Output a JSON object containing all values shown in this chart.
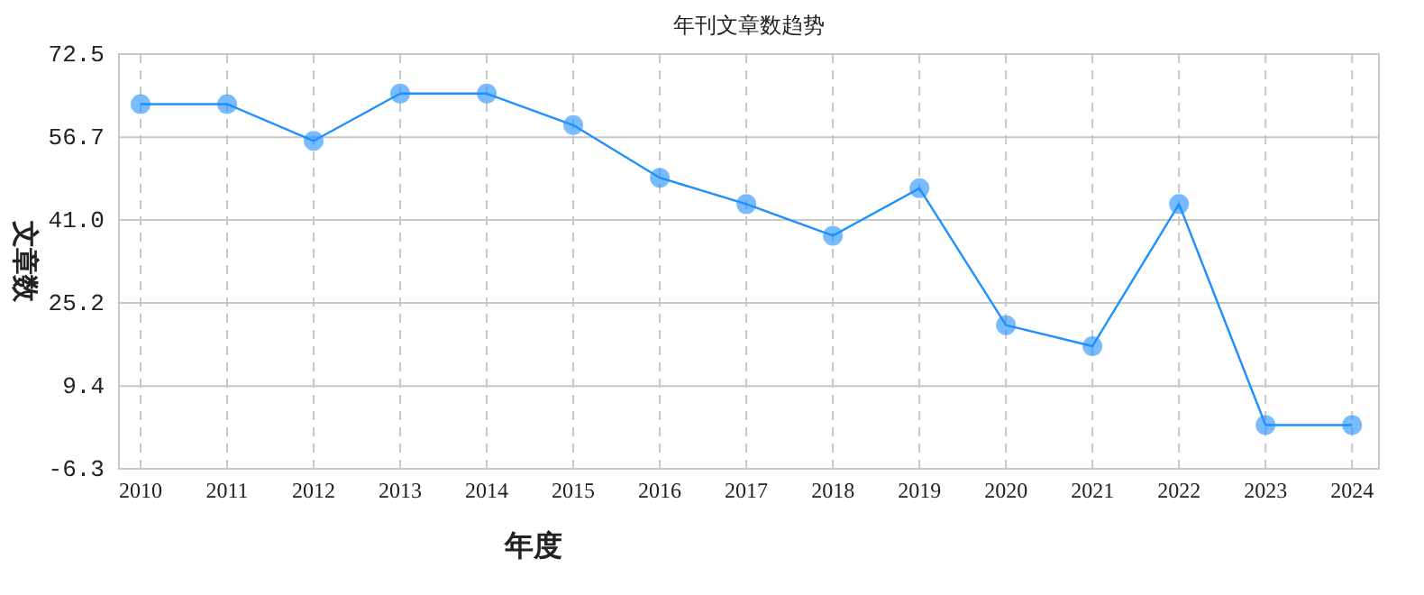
{
  "chart_data": {
    "type": "line",
    "title": "年刊文章数趋势",
    "xlabel": "年度",
    "ylabel": "文章数",
    "categories": [
      "2010",
      "2011",
      "2012",
      "2013",
      "2014",
      "2015",
      "2016",
      "2017",
      "2018",
      "2019",
      "2020",
      "2021",
      "2022",
      "2023",
      "2024"
    ],
    "series": [
      {
        "color": "#1e90ff",
        "values": [
          63,
          63,
          56,
          65,
          65,
          59,
          49,
          44,
          38,
          47,
          21,
          17,
          44,
          2,
          2
        ]
      }
    ],
    "ylim": [
      -6.3,
      72.5
    ],
    "yticks": [
      {
        "value": -6.3,
        "label": "-6.3"
      },
      {
        "value": 9.4,
        "label": "9.4"
      },
      {
        "value": 25.2,
        "label": "25.2"
      },
      {
        "value": 41,
        "label": "41.0"
      },
      {
        "value": 56.7,
        "label": "56.7"
      },
      {
        "value": 72.5,
        "label": "72.5"
      }
    ],
    "grid": true,
    "marker": "circle"
  }
}
